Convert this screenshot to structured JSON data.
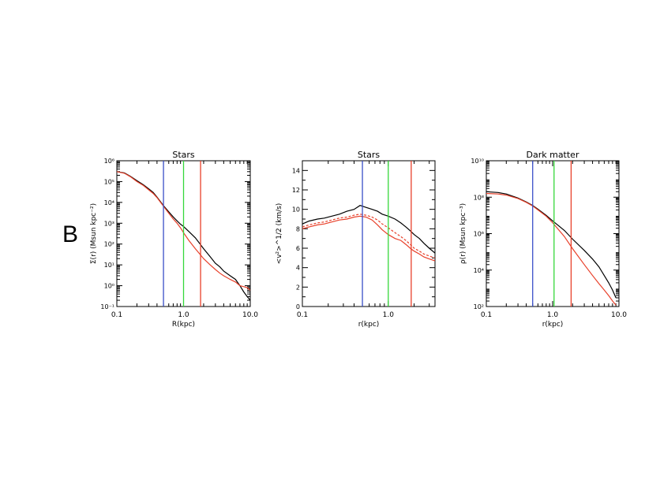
{
  "figure": {
    "panel_label": "B"
  },
  "chart_data": [
    {
      "type": "line",
      "title": "Stars",
      "xlabel": "R(kpc)",
      "ylabel": "Σ(r) (Msun kpc⁻²)",
      "xscale": "log",
      "yscale": "log",
      "xlim": [
        0.1,
        10.0
      ],
      "ylim": [
        0.1,
        1000000
      ],
      "xticks": [
        {
          "v": 0.1,
          "label": "0.1"
        },
        {
          "v": 1.0,
          "label": "1.0"
        },
        {
          "v": 10.0,
          "label": "10.0"
        }
      ],
      "yticks": [
        {
          "v": 0.1,
          "label": "10⁻¹"
        },
        {
          "v": 1,
          "label": "10⁰"
        },
        {
          "v": 10,
          "label": "10¹"
        },
        {
          "v": 100,
          "label": "10²"
        },
        {
          "v": 1000,
          "label": "10³"
        },
        {
          "v": 10000,
          "label": "10⁴"
        },
        {
          "v": 100000,
          "label": "10⁵"
        },
        {
          "v": 1000000,
          "label": "10⁶"
        }
      ],
      "vlines": [
        {
          "x": 0.5,
          "color": "#3a4fc8"
        },
        {
          "x": 1.0,
          "color": "#36d83a"
        },
        {
          "x": 1.8,
          "color": "#e8402a"
        }
      ],
      "series": [
        {
          "color": "#000000",
          "style": "solid",
          "x": [
            0.1,
            0.13,
            0.16,
            0.2,
            0.25,
            0.3,
            0.35,
            0.4,
            0.5,
            0.6,
            0.7,
            0.8,
            0.9,
            1.0,
            1.2,
            1.5,
            2.0,
            2.5,
            3.0,
            3.5,
            4.0,
            5.0,
            6.0,
            7.0,
            8.0,
            9.0,
            10.0
          ],
          "y": [
            300000,
            260000,
            180000,
            110000,
            70000,
            45000,
            30000,
            18000,
            7000,
            3500,
            2000,
            1300,
            900,
            700,
            400,
            200,
            60,
            25,
            12,
            8,
            5,
            3,
            2,
            1,
            0.5,
            0.3,
            0.2
          ]
        },
        {
          "color": "#e8402a",
          "style": "solid",
          "x": [
            0.1,
            0.13,
            0.16,
            0.2,
            0.25,
            0.3,
            0.35,
            0.4,
            0.5,
            0.6,
            0.7,
            0.8,
            0.9,
            1.0,
            1.2,
            1.5,
            2.0,
            2.5,
            3.0,
            3.5,
            4.0,
            5.0,
            6.0,
            7.0,
            8.0,
            9.0,
            10.0
          ],
          "y": [
            300000,
            250000,
            170000,
            100000,
            65000,
            40000,
            27000,
            17000,
            6500,
            3000,
            1600,
            1000,
            600,
            350,
            150,
            60,
            20,
            10,
            6,
            4,
            3,
            2,
            1.5,
            1,
            0.9,
            0.8,
            0.6
          ]
        }
      ]
    },
    {
      "type": "line",
      "title": "Stars",
      "xlabel": "r(kpc)",
      "ylabel": "<v²>^1/2 (km/s)",
      "xscale": "log",
      "yscale": "linear",
      "xlim": [
        0.1,
        3.5
      ],
      "ylim": [
        0,
        15
      ],
      "xticks": [
        {
          "v": 0.1,
          "label": "0.1"
        },
        {
          "v": 1.0,
          "label": "1.0"
        }
      ],
      "yticks": [
        {
          "v": 0,
          "label": "0"
        },
        {
          "v": 2,
          "label": "2"
        },
        {
          "v": 4,
          "label": "4"
        },
        {
          "v": 6,
          "label": "6"
        },
        {
          "v": 8,
          "label": "8"
        },
        {
          "v": 10,
          "label": "10"
        },
        {
          "v": 12,
          "label": "12"
        },
        {
          "v": 14,
          "label": "14"
        }
      ],
      "vlines": [
        {
          "x": 0.5,
          "color": "#3a4fc8"
        },
        {
          "x": 1.0,
          "color": "#36d83a"
        },
        {
          "x": 1.85,
          "color": "#e8402a"
        }
      ],
      "series": [
        {
          "color": "#000000",
          "style": "solid",
          "x": [
            0.1,
            0.12,
            0.15,
            0.18,
            0.22,
            0.27,
            0.33,
            0.4,
            0.47,
            0.55,
            0.65,
            0.75,
            0.85,
            1.0,
            1.2,
            1.4,
            1.6,
            1.8,
            2.0,
            2.3,
            2.6,
            3.0,
            3.5
          ],
          "y": [
            8.5,
            8.8,
            9.0,
            9.1,
            9.3,
            9.5,
            9.8,
            10.0,
            10.4,
            10.2,
            10.0,
            9.8,
            9.5,
            9.3,
            9.0,
            8.6,
            8.2,
            7.8,
            7.4,
            7.0,
            6.5,
            6.0,
            5.5
          ]
        },
        {
          "color": "#e8402a",
          "style": "solid",
          "x": [
            0.1,
            0.12,
            0.15,
            0.18,
            0.22,
            0.27,
            0.33,
            0.4,
            0.47,
            0.55,
            0.65,
            0.75,
            0.85,
            1.0,
            1.2,
            1.4,
            1.6,
            1.8,
            2.0,
            2.3,
            2.6,
            3.0,
            3.5
          ],
          "y": [
            8.0,
            8.2,
            8.4,
            8.5,
            8.7,
            8.9,
            9.0,
            9.2,
            9.3,
            9.2,
            8.9,
            8.4,
            7.9,
            7.4,
            7.0,
            6.8,
            6.4,
            6.0,
            5.7,
            5.4,
            5.1,
            4.9,
            4.7
          ]
        },
        {
          "color": "#e8402a",
          "style": "dashed",
          "x": [
            0.1,
            0.12,
            0.15,
            0.18,
            0.22,
            0.27,
            0.33,
            0.4,
            0.47,
            0.55,
            0.65,
            0.75,
            0.85,
            1.0,
            1.2,
            1.4,
            1.6,
            1.8,
            2.0,
            2.3,
            2.6,
            3.0,
            3.5
          ],
          "y": [
            8.2,
            8.4,
            8.6,
            8.7,
            8.9,
            9.1,
            9.2,
            9.4,
            9.5,
            9.4,
            9.2,
            8.9,
            8.5,
            8.1,
            7.6,
            7.2,
            6.8,
            6.4,
            6.0,
            5.7,
            5.4,
            5.2,
            5.0
          ]
        }
      ]
    },
    {
      "type": "line",
      "title": "Dark matter",
      "xlabel": "r(kpc)",
      "ylabel": "ρ(r) (Msun kpc⁻³)",
      "xscale": "log",
      "yscale": "log",
      "xlim": [
        0.1,
        10.0
      ],
      "ylim": [
        100,
        10000000000
      ],
      "xticks": [
        {
          "v": 0.1,
          "label": "0.1"
        },
        {
          "v": 1.0,
          "label": "1.0"
        },
        {
          "v": 10.0,
          "label": "10.0"
        }
      ],
      "yticks": [
        {
          "v": 100,
          "label": "10²"
        },
        {
          "v": 10000,
          "label": "10⁴"
        },
        {
          "v": 1000000,
          "label": "10⁶"
        },
        {
          "v": 100000000,
          "label": "10⁸"
        },
        {
          "v": 10000000000,
          "label": "10¹⁰"
        }
      ],
      "vlines": [
        {
          "x": 0.5,
          "color": "#3a4fc8"
        },
        {
          "x": 1.05,
          "color": "#36d83a"
        },
        {
          "x": 1.9,
          "color": "#e8402a"
        }
      ],
      "series": [
        {
          "color": "#000000",
          "style": "solid",
          "x": [
            0.1,
            0.15,
            0.2,
            0.3,
            0.4,
            0.5,
            0.6,
            0.8,
            1.0,
            1.5,
            2.0,
            3.0,
            4.0,
            5.0,
            6.0,
            7.0,
            8.0,
            9.0
          ],
          "y": [
            200000000,
            180000000,
            150000000,
            90000000,
            55000000,
            35000000,
            22000000,
            10000000,
            5000000,
            1500000,
            500000,
            120000,
            40000,
            15000,
            5000,
            2000,
            800,
            300
          ]
        },
        {
          "color": "#e8402a",
          "style": "solid",
          "x": [
            0.1,
            0.15,
            0.2,
            0.3,
            0.4,
            0.5,
            0.6,
            0.8,
            1.0,
            1.5,
            2.0,
            3.0,
            4.0,
            5.0,
            6.0,
            7.0,
            8.0,
            9.0
          ],
          "y": [
            160000000,
            150000000,
            130000000,
            85000000,
            52000000,
            33000000,
            20000000,
            9000000,
            4000000,
            700000,
            150000,
            20000,
            5000,
            1800,
            800,
            400,
            200,
            120
          ]
        }
      ]
    }
  ]
}
